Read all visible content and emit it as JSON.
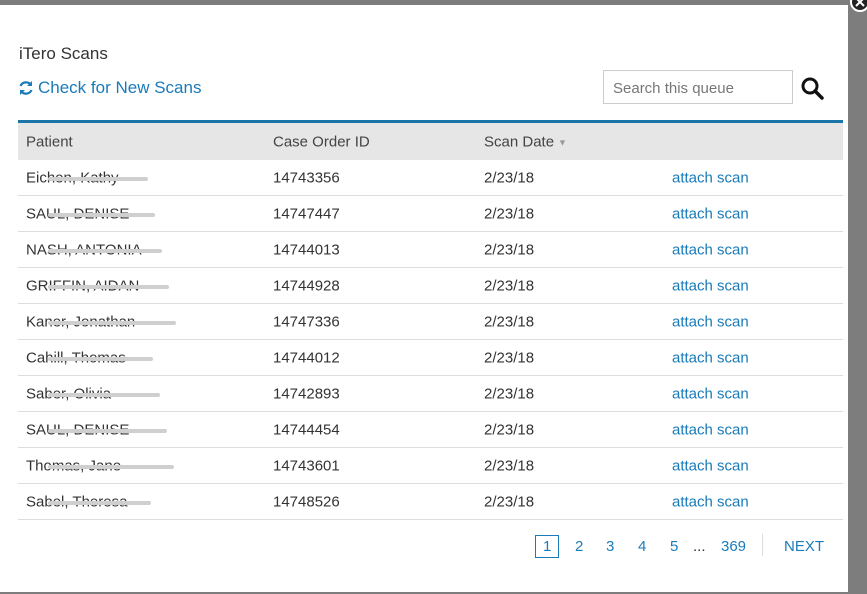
{
  "header": {
    "title": "iTero Scans",
    "refresh_link": "Check for New Scans",
    "search_placeholder": "Search this queue"
  },
  "table": {
    "columns": [
      "Patient",
      "Case Order ID",
      "Scan Date"
    ],
    "rows": [
      [
        "Eichen, Kathy",
        "14743356",
        "2/23/18",
        "attach scan"
      ],
      [
        "SAUL, DENISE",
        "14747447",
        "2/23/18",
        "attach scan"
      ],
      [
        "NASH, ANTONIA",
        "14744013",
        "2/23/18",
        "attach scan"
      ],
      [
        "GRIFFIN, AIDAN",
        "14744928",
        "2/23/18",
        "attach scan"
      ],
      [
        "Kaner, Jonathan",
        "14747336",
        "2/23/18",
        "attach scan"
      ],
      [
        "Cahill, Thomas",
        "14744012",
        "2/23/18",
        "attach scan"
      ],
      [
        "Saber, Olivia",
        "14742893",
        "2/23/18",
        "attach scan"
      ],
      [
        "SAUL, DENISE",
        "14744454",
        "2/23/18",
        "attach scan"
      ],
      [
        "Thomas, Jane",
        "14743601",
        "2/23/18",
        "attach scan"
      ],
      [
        "Sabel, Theresa",
        "14748526",
        "2/23/18",
        "attach scan"
      ]
    ]
  },
  "pagination": {
    "pages": [
      "1",
      "2",
      "3",
      "4",
      "5",
      "...",
      "369"
    ],
    "next": "NEXT"
  }
}
